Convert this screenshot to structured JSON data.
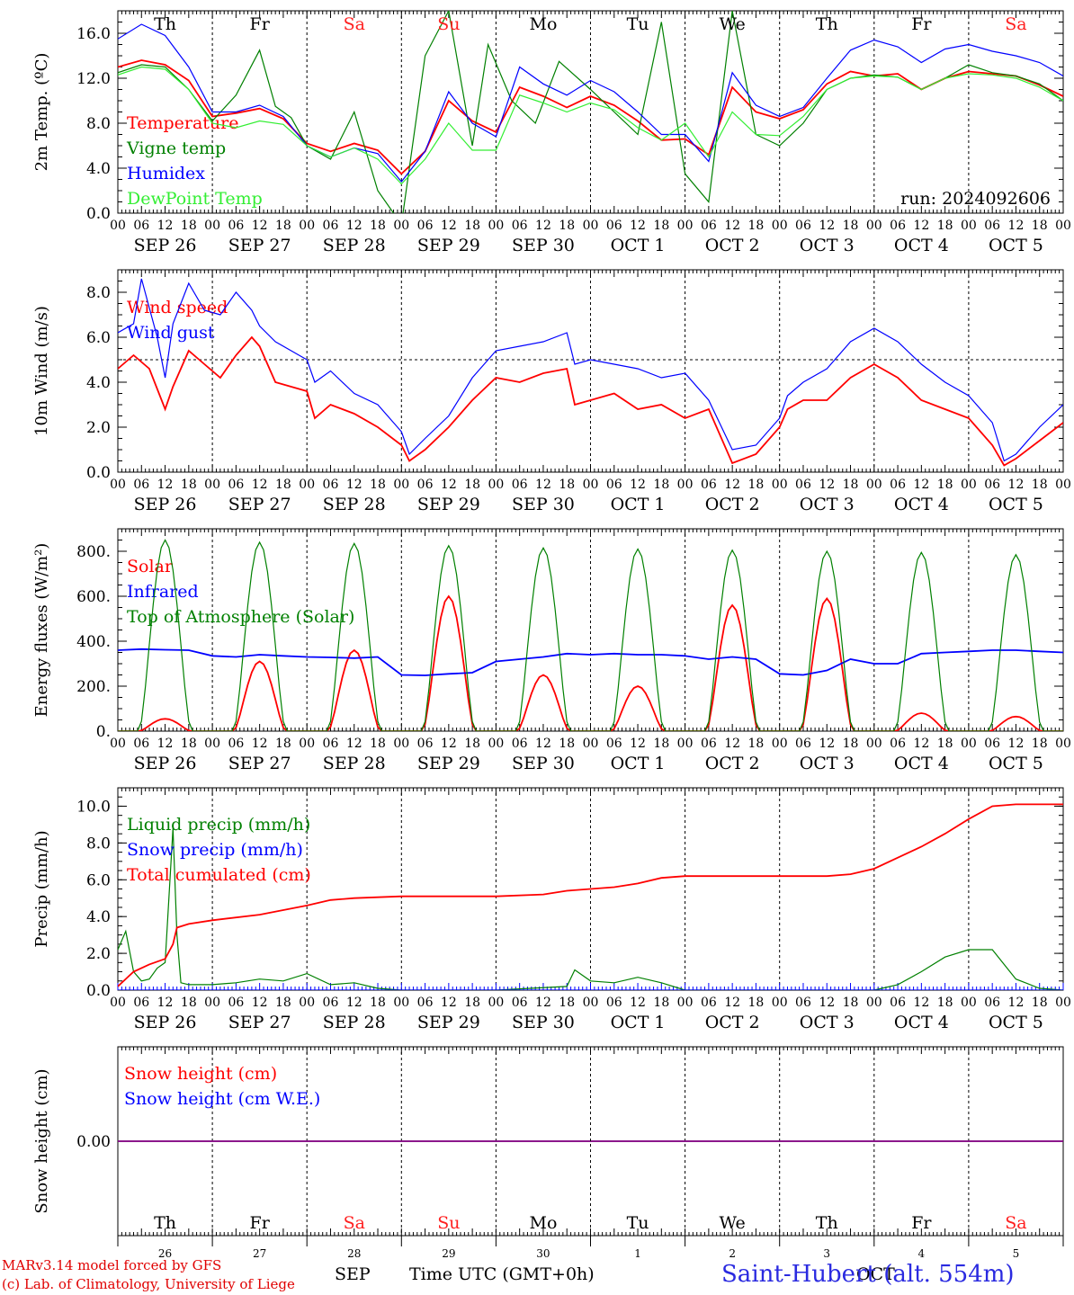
{
  "days": [
    {
      "date": "SEP 26",
      "dow": "Th",
      "weekend": false,
      "short": "26"
    },
    {
      "date": "SEP 27",
      "dow": "Fr",
      "weekend": false,
      "short": "27"
    },
    {
      "date": "SEP 28",
      "dow": "Sa",
      "weekend": true,
      "short": "28"
    },
    {
      "date": "SEP 29",
      "dow": "Su",
      "weekend": true,
      "short": "29"
    },
    {
      "date": "SEP 30",
      "dow": "Mo",
      "weekend": false,
      "short": "30"
    },
    {
      "date": "OCT  1",
      "dow": "Tu",
      "weekend": false,
      "short": "1"
    },
    {
      "date": "OCT  2",
      "dow": "We",
      "weekend": false,
      "short": "2"
    },
    {
      "date": "OCT  3",
      "dow": "Th",
      "weekend": false,
      "short": "3"
    },
    {
      "date": "OCT  4",
      "dow": "Fr",
      "weekend": false,
      "short": "4"
    },
    {
      "date": "OCT  5",
      "dow": "Sa",
      "weekend": true,
      "short": "5"
    }
  ],
  "hour_ticks": [
    "00",
    "06",
    "12",
    "18"
  ],
  "hour_end": "00",
  "colors": {
    "red": "#ff0000",
    "green": "#008000",
    "blue": "#0000ff",
    "lightgreen": "#33ee33",
    "weekend": "#ff2020",
    "purple": "#800080"
  },
  "chart_data": [
    {
      "type": "line",
      "ylabel": "2m Temp. (ºC)",
      "ylim": [
        0,
        18
      ],
      "yticks": [
        "0.0",
        "4.0",
        "8.0",
        "12.0",
        "16.0"
      ],
      "annotation": "run: 2024092606",
      "series": [
        {
          "name": "Temperature",
          "color": "red",
          "t": [
            0,
            6,
            12,
            18,
            24,
            30,
            36,
            42,
            48,
            54,
            60,
            66,
            72,
            78,
            84,
            90,
            96,
            102,
            108,
            114,
            120,
            126,
            132,
            138,
            144,
            150,
            156,
            162,
            168,
            174,
            180,
            186,
            192,
            198,
            204,
            210,
            216,
            222,
            228,
            234,
            240
          ],
          "values": [
            13.0,
            13.6,
            13.2,
            11.8,
            8.6,
            8.9,
            9.3,
            8.4,
            6.2,
            5.5,
            6.2,
            5.6,
            3.5,
            5.5,
            10.0,
            8.2,
            7.2,
            11.2,
            10.4,
            9.4,
            10.4,
            9.6,
            8.2,
            6.5,
            6.6,
            5.2,
            11.2,
            9.0,
            8.4,
            9.2,
            11.5,
            12.6,
            12.2,
            12.4,
            11.0,
            12.0,
            12.6,
            12.4,
            12.2,
            11.4,
            10.4
          ]
        },
        {
          "name": "Vigne temp",
          "color": "green",
          "t": [
            0,
            6,
            12,
            18,
            24,
            30,
            36,
            40,
            44,
            48,
            54,
            60,
            66,
            72,
            78,
            84,
            90,
            94,
            100,
            106,
            112,
            120,
            126,
            132,
            138,
            144,
            150,
            156,
            162,
            168,
            174,
            180,
            186,
            192,
            198,
            204,
            210,
            216,
            222,
            228,
            234,
            240
          ],
          "values": [
            12.5,
            13.2,
            13.0,
            11.0,
            8.2,
            10.5,
            14.5,
            9.5,
            8.5,
            6.0,
            4.8,
            9.0,
            2.0,
            -1.0,
            14.0,
            18.0,
            6.0,
            15.0,
            10.0,
            8.0,
            13.5,
            11.0,
            9.0,
            7.0,
            17.0,
            3.5,
            1.0,
            18.0,
            7.0,
            6.0,
            8.0,
            11.0,
            12.0,
            12.3,
            12.1,
            11.0,
            12.0,
            13.2,
            12.5,
            12.2,
            11.5,
            10.0
          ]
        },
        {
          "name": "Humidex",
          "color": "blue",
          "t": [
            0,
            6,
            12,
            18,
            24,
            30,
            36,
            42,
            48,
            54,
            60,
            66,
            72,
            78,
            84,
            90,
            96,
            102,
            108,
            114,
            120,
            126,
            132,
            138,
            144,
            150,
            156,
            162,
            168,
            174,
            180,
            186,
            192,
            198,
            204,
            210,
            216,
            222,
            228,
            234,
            240
          ],
          "values": [
            15.5,
            16.8,
            15.8,
            13.0,
            9.0,
            9.0,
            9.6,
            8.6,
            6.0,
            5.0,
            5.8,
            5.3,
            2.8,
            5.5,
            10.8,
            8.0,
            6.8,
            13.0,
            11.5,
            10.5,
            11.8,
            10.8,
            9.0,
            7.0,
            7.0,
            4.6,
            12.5,
            9.6,
            8.6,
            9.4,
            12.0,
            14.5,
            15.4,
            14.8,
            13.4,
            14.6,
            15.0,
            14.4,
            14.0,
            13.4,
            12.2
          ]
        },
        {
          "name": "DewPoint Temp",
          "color": "lightgreen",
          "t": [
            0,
            6,
            12,
            18,
            24,
            30,
            36,
            42,
            48,
            54,
            60,
            66,
            72,
            78,
            84,
            90,
            96,
            102,
            108,
            114,
            120,
            126,
            132,
            138,
            144,
            150,
            156,
            162,
            168,
            174,
            180,
            186,
            192,
            198,
            204,
            210,
            216,
            222,
            228,
            234,
            240
          ],
          "values": [
            12.3,
            13.0,
            12.8,
            11.0,
            8.0,
            7.6,
            8.2,
            7.9,
            6.0,
            5.0,
            5.8,
            4.8,
            2.6,
            4.8,
            8.0,
            5.6,
            5.6,
            10.5,
            9.8,
            9.0,
            9.8,
            9.2,
            7.6,
            6.5,
            8.0,
            5.0,
            9.0,
            7.0,
            6.9,
            8.6,
            11.0,
            12.0,
            12.2,
            12.1,
            11.0,
            12.0,
            12.4,
            12.3,
            12.0,
            11.2,
            10.0
          ]
        }
      ]
    },
    {
      "type": "line",
      "ylabel": "10m Wind (m/s)",
      "ylim": [
        0,
        9
      ],
      "yticks": [
        "0.0",
        "2.0",
        "4.0",
        "6.0",
        "8.0"
      ],
      "reference_line": 5,
      "series": [
        {
          "name": "Wind speed",
          "color": "red",
          "t": [
            0,
            4,
            8,
            12,
            14,
            18,
            22,
            26,
            30,
            34,
            36,
            40,
            48,
            50,
            54,
            60,
            66,
            72,
            74,
            78,
            84,
            90,
            96,
            102,
            108,
            114,
            116,
            120,
            126,
            132,
            138,
            144,
            150,
            156,
            162,
            168,
            170,
            174,
            180,
            186,
            192,
            198,
            204,
            210,
            216,
            222,
            225,
            228,
            234,
            240
          ],
          "values": [
            4.6,
            5.2,
            4.6,
            2.8,
            3.8,
            5.4,
            4.8,
            4.2,
            5.2,
            6.0,
            5.6,
            4.0,
            3.6,
            2.4,
            3.0,
            2.6,
            2.0,
            1.2,
            0.5,
            1.0,
            2.0,
            3.2,
            4.2,
            4.0,
            4.4,
            4.6,
            3.0,
            3.2,
            3.5,
            2.8,
            3.0,
            2.4,
            2.8,
            0.4,
            0.8,
            2.0,
            2.8,
            3.2,
            3.2,
            4.2,
            4.8,
            4.2,
            3.2,
            2.8,
            2.4,
            1.2,
            0.3,
            0.6,
            1.4,
            2.2
          ]
        },
        {
          "name": "Wind gust",
          "color": "blue",
          "t": [
            0,
            4,
            6,
            10,
            12,
            14,
            18,
            22,
            26,
            30,
            34,
            36,
            40,
            48,
            50,
            54,
            60,
            66,
            72,
            74,
            78,
            84,
            90,
            96,
            102,
            108,
            114,
            116,
            120,
            126,
            132,
            138,
            144,
            150,
            156,
            162,
            168,
            170,
            174,
            180,
            186,
            192,
            198,
            204,
            210,
            216,
            222,
            225,
            228,
            234,
            240
          ],
          "values": [
            6.2,
            6.6,
            8.6,
            6.0,
            4.2,
            6.6,
            8.4,
            7.2,
            7.0,
            8.0,
            7.2,
            6.5,
            5.8,
            5.0,
            4.0,
            4.5,
            3.5,
            3.0,
            1.8,
            0.8,
            1.5,
            2.5,
            4.2,
            5.4,
            5.6,
            5.8,
            6.2,
            4.8,
            5.0,
            4.8,
            4.6,
            4.2,
            4.4,
            3.2,
            1.0,
            1.2,
            2.4,
            3.4,
            4.0,
            4.6,
            5.8,
            6.4,
            5.8,
            4.8,
            4.0,
            3.4,
            2.2,
            0.5,
            0.8,
            2.0,
            3.0
          ]
        }
      ]
    },
    {
      "type": "line",
      "ylabel": "Energy fluxes (W/m²)",
      "ylim": [
        0,
        900
      ],
      "yticks": [
        "0.",
        "200.",
        "400.",
        "600.",
        "800."
      ],
      "series": [
        {
          "name": "Solar",
          "color": "red",
          "daily_peak": [
            55,
            310,
            360,
            600,
            250,
            200,
            560,
            590,
            80,
            65
          ]
        },
        {
          "name": "Infrared",
          "color": "blue",
          "t": [
            0,
            6,
            12,
            18,
            24,
            30,
            36,
            42,
            48,
            54,
            60,
            66,
            72,
            78,
            84,
            90,
            96,
            102,
            108,
            114,
            120,
            126,
            132,
            138,
            144,
            150,
            156,
            162,
            168,
            174,
            180,
            186,
            192,
            198,
            204,
            210,
            216,
            222,
            228,
            234,
            240
          ],
          "values": [
            360,
            365,
            362,
            360,
            335,
            330,
            340,
            335,
            330,
            328,
            325,
            330,
            250,
            248,
            255,
            260,
            310,
            320,
            330,
            345,
            340,
            345,
            340,
            340,
            335,
            320,
            330,
            320,
            255,
            250,
            270,
            320,
            300,
            300,
            345,
            350,
            355,
            360,
            360,
            355,
            350
          ]
        },
        {
          "name": "Top of Atmosphere (Solar)",
          "color": "green",
          "daily_peak": [
            850,
            840,
            835,
            825,
            815,
            810,
            805,
            800,
            795,
            785
          ]
        }
      ]
    },
    {
      "type": "line",
      "ylabel": "Precip (mm/h)",
      "ylim": [
        0,
        11
      ],
      "yticks": [
        "0.0",
        "2.0",
        "4.0",
        "6.0",
        "8.0",
        "10.0"
      ],
      "series": [
        {
          "name": "Liquid precip (mm/h)",
          "color": "green",
          "t": [
            0,
            2,
            4,
            6,
            8,
            10,
            12,
            14,
            15,
            16,
            18,
            24,
            30,
            36,
            42,
            48,
            54,
            60,
            66,
            72,
            96,
            114,
            116,
            120,
            126,
            132,
            138,
            144,
            192,
            198,
            204,
            210,
            216,
            222,
            228,
            234,
            240
          ],
          "values": [
            2.2,
            3.2,
            1.0,
            0.5,
            0.6,
            1.2,
            1.5,
            8.8,
            3.0,
            0.4,
            0.3,
            0.3,
            0.4,
            0.6,
            0.5,
            0.9,
            0.3,
            0.4,
            0.1,
            0.0,
            0.0,
            0.2,
            1.1,
            0.5,
            0.4,
            0.7,
            0.4,
            0.0,
            0.0,
            0.3,
            1.0,
            1.8,
            2.2,
            2.2,
            0.6,
            0.1,
            0.0
          ]
        },
        {
          "name": "Snow precip (mm/h)",
          "color": "blue",
          "t": [
            0,
            240
          ],
          "values": [
            0,
            0
          ]
        },
        {
          "name": "Total cumulated (cm)",
          "color": "red",
          "t": [
            0,
            4,
            8,
            12,
            14,
            15,
            18,
            24,
            36,
            48,
            54,
            60,
            72,
            84,
            96,
            108,
            114,
            120,
            126,
            132,
            138,
            144,
            168,
            180,
            186,
            192,
            198,
            204,
            210,
            216,
            222,
            228,
            234,
            240
          ],
          "values": [
            0.2,
            1.0,
            1.4,
            1.7,
            2.5,
            3.4,
            3.6,
            3.8,
            4.1,
            4.6,
            4.9,
            5.0,
            5.1,
            5.1,
            5.1,
            5.2,
            5.4,
            5.5,
            5.6,
            5.8,
            6.1,
            6.2,
            6.2,
            6.2,
            6.3,
            6.6,
            7.2,
            7.8,
            8.5,
            9.3,
            10.0,
            10.1,
            10.1,
            10.1
          ]
        }
      ]
    },
    {
      "type": "line",
      "ylabel": "Snow height (cm)",
      "ylim": [
        -1,
        1
      ],
      "yticks": [
        "0.00"
      ],
      "series": [
        {
          "name": "Snow height (cm)",
          "color": "red",
          "t": [
            0,
            240
          ],
          "values": [
            0,
            0
          ]
        },
        {
          "name": "Snow height (cm W.E.)",
          "color": "blue",
          "t": [
            0,
            240
          ],
          "values": [
            0,
            0
          ]
        }
      ]
    }
  ],
  "footer": {
    "credit_line1": "MARv3.14 model forced by GFS",
    "credit_line2": "(c) Lab. of Climatology, University of Liege",
    "xlabel": "Time UTC (GMT+0h)",
    "month1": "SEP",
    "month2": "OCT",
    "station": "Saint-Hubert (alt. 554m)"
  }
}
